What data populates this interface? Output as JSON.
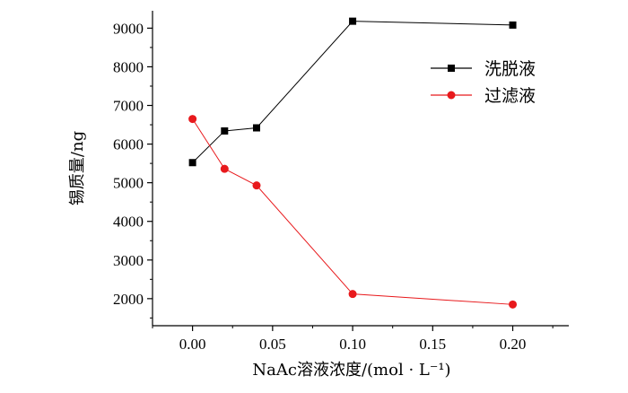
{
  "chart_data": {
    "type": "line",
    "xlabel": "NaAc溶液浓度/(mol · L⁻¹)",
    "ylabel": "锡质量/ng",
    "xlim": [
      -0.025,
      0.235
    ],
    "ylim": [
      1300,
      9450
    ],
    "xticks": [
      "0.00",
      "0.05",
      "0.10",
      "0.15",
      "0.20"
    ],
    "xtick_values": [
      0.0,
      0.05,
      0.1,
      0.15,
      0.2
    ],
    "yticks": [
      "2000",
      "3000",
      "4000",
      "5000",
      "6000",
      "7000",
      "8000",
      "9000"
    ],
    "ytick_values": [
      2000,
      3000,
      4000,
      5000,
      6000,
      7000,
      8000,
      9000
    ],
    "grid": false,
    "legend_position": "top-right",
    "series": [
      {
        "name": "洗脱液",
        "color": "#000000",
        "marker": "square",
        "x": [
          0.0,
          0.02,
          0.04,
          0.1,
          0.2
        ],
        "y": [
          5520,
          6340,
          6420,
          9180,
          9080
        ]
      },
      {
        "name": "过滤液",
        "color": "#e8191c",
        "marker": "circle",
        "x": [
          0.0,
          0.02,
          0.04,
          0.1,
          0.2
        ],
        "y": [
          6650,
          5360,
          4930,
          2120,
          1850
        ]
      }
    ]
  }
}
